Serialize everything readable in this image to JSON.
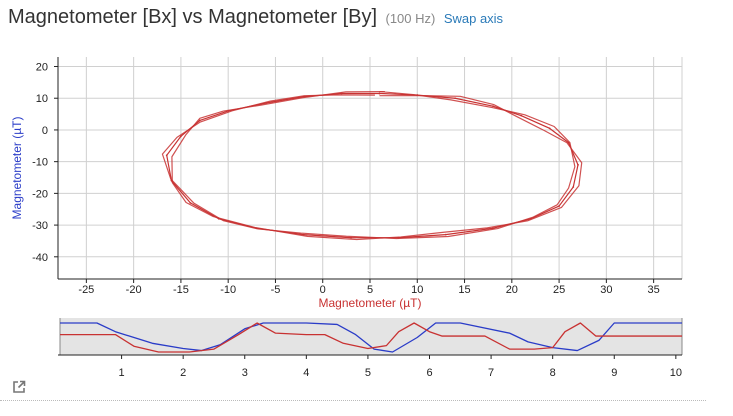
{
  "header": {
    "title": "Magnetometer [Bx] vs Magnetometer [By]",
    "rate": "(100 Hz)",
    "swap_label": "Swap axis"
  },
  "colors": {
    "bx": "#c83232",
    "by": "#2a3cc8",
    "grid": "#d0d0d0",
    "overview_bg": "#e4e4e4"
  },
  "icons": {
    "external_link": "external-link-icon"
  },
  "chart_data": [
    {
      "type": "line",
      "title": "Magnetometer [Bx] vs Magnetometer [By]",
      "xlabel": "Magnetometer (µT)",
      "ylabel": "Magnetometer (µT)",
      "xlim": [
        -28,
        38
      ],
      "ylim": [
        -47,
        23
      ],
      "xticks": [
        -25,
        -20,
        -15,
        -10,
        -5,
        0,
        5,
        10,
        15,
        20,
        25,
        30,
        35
      ],
      "yticks": [
        20,
        10,
        0,
        -10,
        -20,
        -30,
        -40
      ],
      "grid": true,
      "series": [
        {
          "x": [
            6,
            10,
            14,
            18,
            21,
            24,
            26,
            27,
            26.5,
            25,
            22,
            18,
            13,
            8,
            3,
            -2,
            -7,
            -11,
            -14,
            -16,
            -16.5,
            -15,
            -13,
            -10,
            -6,
            -2,
            2,
            6
          ],
          "y": [
            11.5,
            11,
            10,
            7.5,
            4.5,
            0.5,
            -4,
            -11,
            -18,
            -24,
            -28,
            -31,
            -33,
            -34,
            -34,
            -33,
            -31,
            -28,
            -23,
            -16,
            -8,
            -2,
            3,
            6,
            8.5,
            10.5,
            11.5,
            11.5
          ]
        }
      ]
    },
    {
      "type": "line",
      "title": "",
      "xlim": [
        0,
        10.1
      ],
      "xticks": [
        1,
        2,
        3,
        4,
        5,
        6,
        7,
        8,
        9,
        10
      ],
      "series": [
        {
          "x": [
            0,
            0.6,
            0.9,
            1.5,
            2.0,
            2.3,
            2.6,
            3.0,
            3.3,
            4.0,
            4.5,
            4.8,
            5.1,
            5.4,
            5.8,
            6.1,
            6.5,
            7.3,
            7.6,
            8.0,
            8.4,
            8.75,
            9.0,
            10.1
          ],
          "y": [
            1.0,
            1.0,
            0.7,
            0.3,
            0.12,
            0.05,
            0.25,
            0.8,
            1.0,
            1.0,
            0.95,
            0.6,
            0.1,
            0.0,
            0.5,
            1.0,
            1.0,
            0.65,
            0.35,
            0.15,
            0.05,
            0.4,
            1.0,
            1.0
          ]
        },
        {
          "x": [
            0,
            0.9,
            1.2,
            1.6,
            2.1,
            2.5,
            2.9,
            3.2,
            3.5,
            4.0,
            4.3,
            4.6,
            5.0,
            5.3,
            5.5,
            5.75,
            6.0,
            6.2,
            6.9,
            7.3,
            7.7,
            8.0,
            8.2,
            8.45,
            8.7,
            10.1
          ],
          "y": [
            0.6,
            0.6,
            0.2,
            0.0,
            0.0,
            0.1,
            0.6,
            1.0,
            0.65,
            0.6,
            0.6,
            0.3,
            0.12,
            0.22,
            0.7,
            1.0,
            0.7,
            0.55,
            0.55,
            0.1,
            0.1,
            0.15,
            0.7,
            1.0,
            0.55,
            0.55
          ]
        }
      ]
    }
  ]
}
